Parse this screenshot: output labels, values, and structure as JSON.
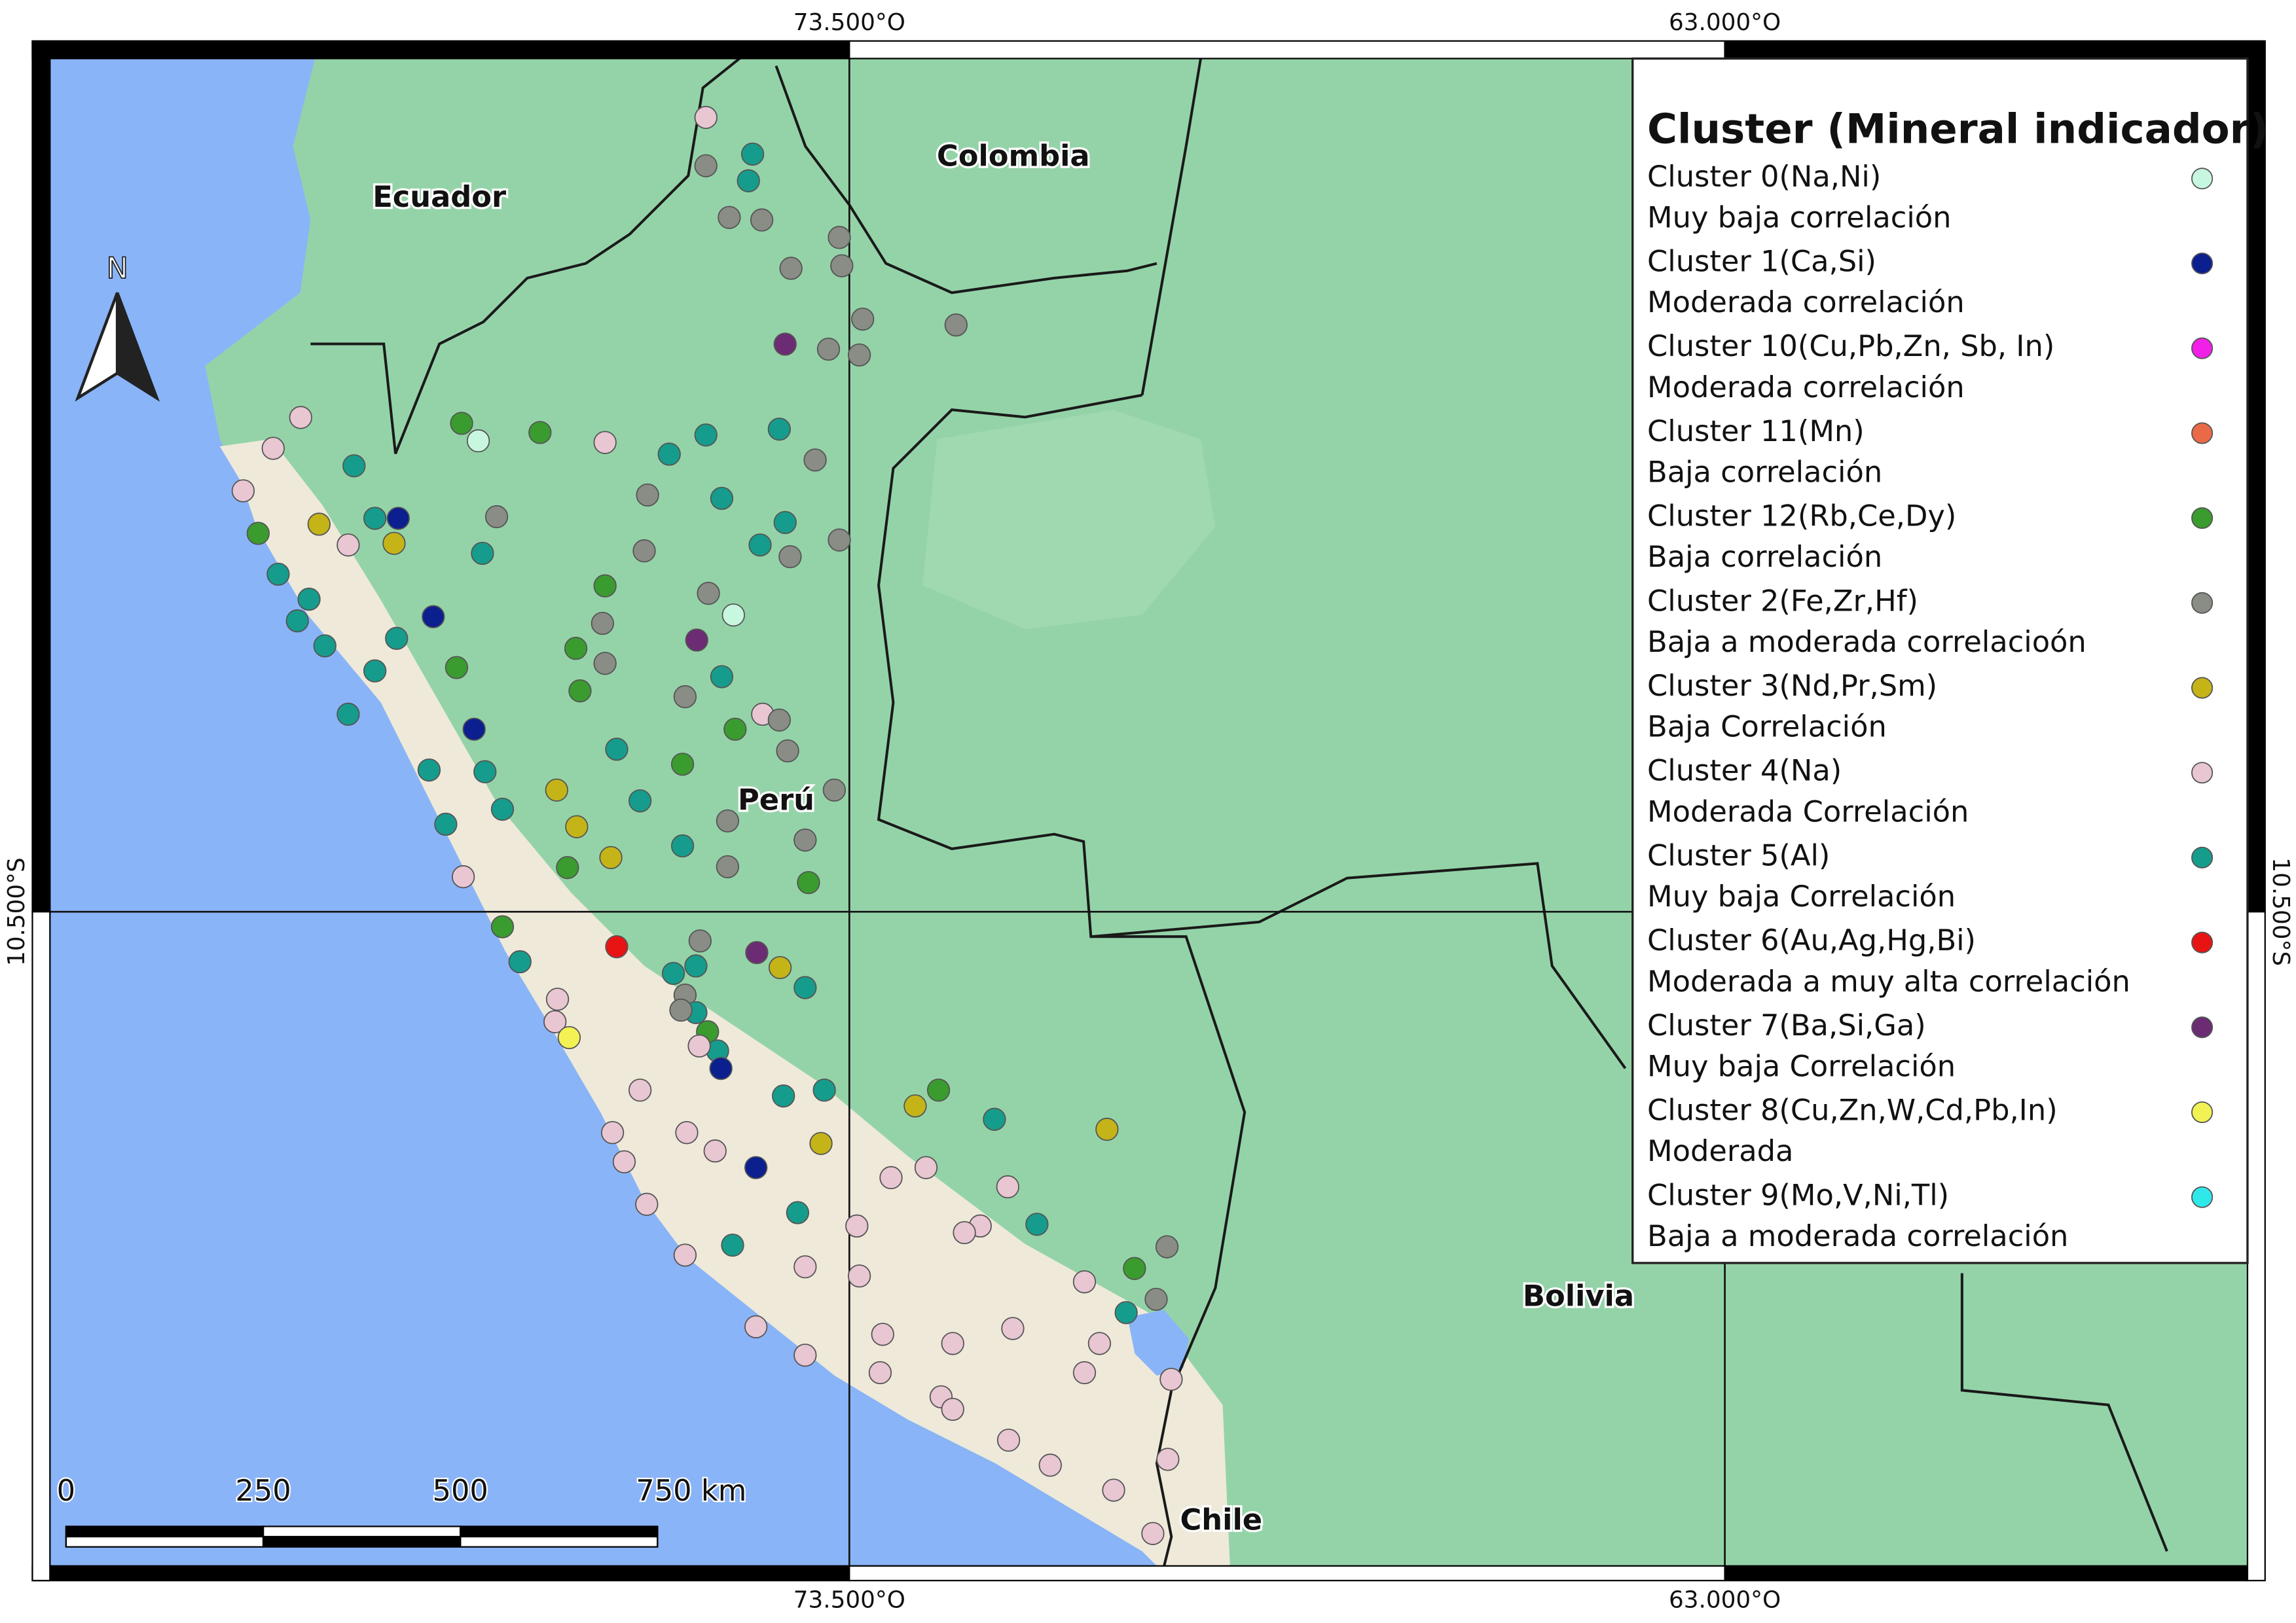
{
  "map": {
    "graticule": {
      "lon": [
        {
          "value": -73.5,
          "label": "73.500°O"
        },
        {
          "value": -63.0,
          "label": "63.000°O"
        }
      ],
      "lat": [
        {
          "value": -10.5,
          "label": "10.500°S"
        }
      ]
    },
    "countries": [
      "Ecuador",
      "Colombia",
      "Perú",
      "Bolivia",
      "Chile"
    ],
    "north_label": "N",
    "scale_bar": {
      "ticks": [
        0,
        250,
        500,
        {
          "value": 750,
          "label": "750 km"
        }
      ]
    },
    "legend": {
      "title": "Cluster (Mineral indicador)",
      "items": [
        {
          "label": "Cluster 0(Na,Ni)",
          "description": "Muy baja correlación",
          "color": "#c8f7e0"
        },
        {
          "label": "Cluster 1(Ca,Si)",
          "description": "Moderada correlación",
          "color": "#0b1f8f"
        },
        {
          "label": "Cluster 10(Cu,Pb,Zn, Sb, In)",
          "description": "Moderada correlación",
          "color": "#f020e8"
        },
        {
          "label": "Cluster 11(Mn)",
          "description": "Baja correlación",
          "color": "#ea6a48"
        },
        {
          "label": "Cluster 12(Rb,Ce,Dy)",
          "description": "Baja correlación",
          "color": "#3a9c2e"
        },
        {
          "label": "Cluster 2(Fe,Zr,Hf)",
          "description": "Baja a moderada correlacioón",
          "color": "#8a8c86"
        },
        {
          "label": "Cluster 3(Nd,Pr,Sm)",
          "description": "Baja Correlación",
          "color": "#c4b418"
        },
        {
          "label": "Cluster 4(Na)",
          "description": "Moderada Correlación",
          "color": "#e8c6d2"
        },
        {
          "label": "Cluster 5(Al)",
          "description": "Muy baja Correlación",
          "color": "#169c8c"
        },
        {
          "label": "Cluster 6(Au,Ag,Hg,Bi)",
          "description": "Moderada a muy alta correlación",
          "color": "#e81414"
        },
        {
          "label": "Cluster 7(Ba,Si,Ga)",
          "description": "Muy baja Correlación",
          "color": "#6c2c74"
        },
        {
          "label": "Cluster 8(Cu,Zn,W,Cd,Pb,In)",
          "description": "Moderada",
          "color": "#f2f254"
        },
        {
          "label": "Cluster 9(Mo,V,Ni,Tl)",
          "description": "Baja a moderada correlación",
          "color": "#30e8ea"
        }
      ]
    },
    "points": [
      [
        -75.22,
        -0.97,
        7
      ],
      [
        -74.66,
        -1.41,
        8
      ],
      [
        -75.22,
        -1.55,
        5
      ],
      [
        -74.71,
        -1.73,
        8
      ],
      [
        -74.94,
        -2.17,
        5
      ],
      [
        -74.55,
        -2.2,
        5
      ],
      [
        -73.62,
        -2.41,
        5
      ],
      [
        -74.2,
        -2.78,
        5
      ],
      [
        -73.59,
        -2.75,
        5
      ],
      [
        -73.34,
        -3.39,
        5
      ],
      [
        -72.22,
        -3.46,
        5
      ],
      [
        -74.27,
        -3.69,
        10
      ],
      [
        -73.75,
        -3.75,
        5
      ],
      [
        -73.38,
        -3.82,
        5
      ],
      [
        -80.08,
        -4.57,
        7
      ],
      [
        -80.41,
        -4.94,
        7
      ],
      [
        -80.77,
        -5.45,
        7
      ],
      [
        -78.15,
        -4.64,
        4
      ],
      [
        -77.95,
        -4.85,
        0
      ],
      [
        -77.21,
        -4.75,
        4
      ],
      [
        -76.43,
        -4.87,
        7
      ],
      [
        -75.66,
        -5.01,
        8
      ],
      [
        -75.22,
        -4.78,
        8
      ],
      [
        -74.34,
        -4.71,
        8
      ],
      [
        -73.91,
        -5.08,
        5
      ],
      [
        -79.44,
        -5.15,
        8
      ],
      [
        -80.59,
        -5.96,
        4
      ],
      [
        -79.86,
        -5.85,
        6
      ],
      [
        -79.19,
        -5.78,
        8
      ],
      [
        -78.91,
        -5.78,
        1
      ],
      [
        -79.51,
        -6.1,
        7
      ],
      [
        -78.96,
        -6.08,
        6
      ],
      [
        -77.73,
        -5.76,
        5
      ],
      [
        -77.9,
        -6.2,
        8
      ],
      [
        -75.92,
        -5.5,
        5
      ],
      [
        -75.03,
        -5.54,
        8
      ],
      [
        -74.27,
        -5.83,
        8
      ],
      [
        -73.62,
        -6.04,
        5
      ],
      [
        -74.57,
        -6.1,
        8
      ],
      [
        -74.21,
        -6.24,
        5
      ],
      [
        -75.96,
        -6.17,
        5
      ],
      [
        -76.43,
        -6.59,
        4
      ],
      [
        -80.35,
        -6.45,
        8
      ],
      [
        -79.98,
        -6.75,
        8
      ],
      [
        -80.12,
        -7.01,
        8
      ],
      [
        -78.49,
        -6.96,
        1
      ],
      [
        -74.89,
        -6.94,
        0
      ],
      [
        -75.19,
        -6.68,
        5
      ],
      [
        -75.33,
        -7.24,
        10
      ],
      [
        -76.46,
        -7.04,
        5
      ],
      [
        -76.78,
        -7.34,
        4
      ],
      [
        -79.79,
        -7.31,
        8
      ],
      [
        -78.93,
        -7.22,
        8
      ],
      [
        -78.21,
        -7.57,
        4
      ],
      [
        -79.19,
        -7.61,
        8
      ],
      [
        -75.03,
        -7.68,
        8
      ],
      [
        -76.43,
        -7.52,
        5
      ],
      [
        -76.73,
        -7.85,
        4
      ],
      [
        -75.47,
        -7.92,
        5
      ],
      [
        -79.51,
        -8.13,
        8
      ],
      [
        -78.0,
        -8.31,
        1
      ],
      [
        -74.87,
        -8.31,
        4
      ],
      [
        -74.54,
        -8.13,
        7
      ],
      [
        -74.34,
        -8.2,
        5
      ],
      [
        -76.29,
        -8.55,
        8
      ],
      [
        -74.24,
        -8.57,
        5
      ],
      [
        -75.5,
        -8.73,
        4
      ],
      [
        -78.54,
        -8.8,
        8
      ],
      [
        -77.87,
        -8.82,
        8
      ],
      [
        -77.01,
        -9.04,
        6
      ],
      [
        -76.01,
        -9.17,
        8
      ],
      [
        -73.68,
        -9.04,
        5
      ],
      [
        -77.66,
        -9.27,
        8
      ],
      [
        -78.34,
        -9.45,
        8
      ],
      [
        -76.77,
        -9.48,
        6
      ],
      [
        -74.96,
        -9.41,
        5
      ],
      [
        -75.5,
        -9.71,
        8
      ],
      [
        -74.03,
        -9.64,
        5
      ],
      [
        -76.36,
        -9.85,
        6
      ],
      [
        -76.88,
        -9.97,
        4
      ],
      [
        -74.96,
        -9.96,
        5
      ],
      [
        -78.13,
        -10.08,
        7
      ],
      [
        -73.99,
        -10.15,
        4
      ],
      [
        -77.66,
        -10.68,
        4
      ],
      [
        -76.29,
        -10.92,
        9
      ],
      [
        -75.29,
        -10.85,
        5
      ],
      [
        -75.34,
        -11.15,
        8
      ],
      [
        -74.61,
        -10.99,
        10
      ],
      [
        -74.33,
        -11.17,
        6
      ],
      [
        -77.45,
        -11.1,
        8
      ],
      [
        -77.03,
        -11.82,
        7
      ],
      [
        -76.86,
        -12.01,
        11
      ],
      [
        -77.0,
        -11.55,
        7
      ],
      [
        -74.03,
        -11.41,
        8
      ],
      [
        -75.61,
        -11.24,
        8
      ],
      [
        -75.47,
        -11.5,
        5
      ],
      [
        -75.34,
        -11.71,
        8
      ],
      [
        -75.2,
        -11.94,
        4
      ],
      [
        -75.08,
        -12.17,
        8
      ],
      [
        -75.04,
        -12.38,
        1
      ],
      [
        -75.52,
        -11.68,
        5
      ],
      [
        -75.3,
        -12.11,
        7
      ],
      [
        -76.01,
        -12.64,
        7
      ],
      [
        -76.34,
        -13.15,
        7
      ],
      [
        -75.45,
        -13.15,
        7
      ],
      [
        -74.29,
        -12.71,
        8
      ],
      [
        -73.8,
        -12.64,
        8
      ],
      [
        -74.62,
        -13.57,
        1
      ],
      [
        -76.2,
        -13.5,
        7
      ],
      [
        -75.11,
        -13.37,
        7
      ],
      [
        -72.43,
        -12.64,
        4
      ],
      [
        -72.71,
        -12.83,
        6
      ],
      [
        -71.76,
        -12.99,
        8
      ],
      [
        -70.41,
        -13.11,
        6
      ],
      [
        -73.84,
        -13.28,
        6
      ],
      [
        -74.12,
        -14.11,
        8
      ],
      [
        -75.93,
        -14.01,
        7
      ],
      [
        -74.9,
        -14.5,
        8
      ],
      [
        -73.0,
        -13.69,
        7
      ],
      [
        -72.58,
        -13.57,
        7
      ],
      [
        -71.6,
        -13.8,
        7
      ],
      [
        -73.41,
        -14.27,
        7
      ],
      [
        -71.93,
        -14.27,
        7
      ],
      [
        -72.12,
        -14.35,
        7
      ],
      [
        -71.25,
        -14.25,
        8
      ],
      [
        -69.69,
        -14.52,
        5
      ],
      [
        -70.08,
        -14.78,
        4
      ],
      [
        -75.47,
        -14.62,
        7
      ],
      [
        -74.03,
        -14.76,
        7
      ],
      [
        -73.38,
        -14.87,
        7
      ],
      [
        -70.68,
        -14.94,
        7
      ],
      [
        -69.82,
        -15.15,
        5
      ],
      [
        -70.18,
        -15.31,
        8
      ],
      [
        -74.62,
        -15.48,
        7
      ],
      [
        -73.1,
        -15.57,
        7
      ],
      [
        -72.26,
        -15.68,
        7
      ],
      [
        -71.54,
        -15.5,
        7
      ],
      [
        -74.03,
        -15.82,
        7
      ],
      [
        -70.5,
        -15.68,
        7
      ],
      [
        -73.13,
        -16.03,
        7
      ],
      [
        -72.4,
        -16.32,
        7
      ],
      [
        -70.68,
        -16.03,
        7
      ],
      [
        -69.64,
        -16.11,
        7
      ],
      [
        -72.26,
        -16.47,
        7
      ],
      [
        -71.59,
        -16.84,
        7
      ],
      [
        -71.09,
        -17.14,
        7
      ],
      [
        -69.68,
        -17.07,
        7
      ],
      [
        -70.33,
        -17.44,
        7
      ],
      [
        -69.86,
        -17.96,
        7
      ]
    ]
  }
}
